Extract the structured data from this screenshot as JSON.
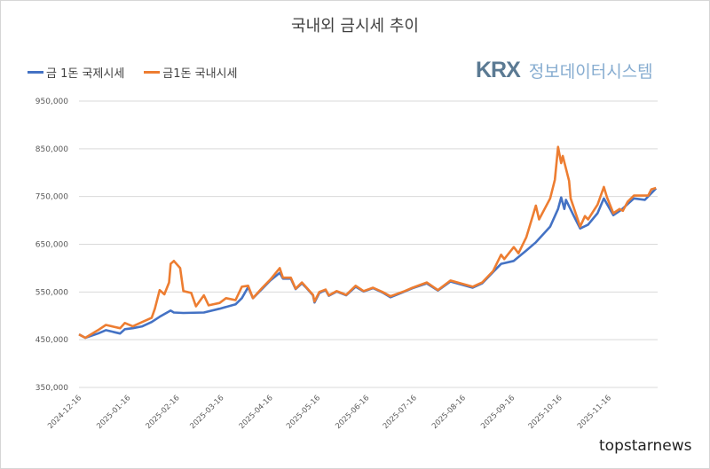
{
  "chart_data": {
    "type": "line",
    "title": "국내외 금시세 추이",
    "xlabel": "",
    "ylabel": "",
    "ylim": [
      350000,
      950000
    ],
    "yticks": [
      "350,000",
      "450,000",
      "550,000",
      "650,000",
      "750,000",
      "850,000",
      "950,000"
    ],
    "ytick_values": [
      350000,
      450000,
      550000,
      650000,
      750000,
      850000,
      950000
    ],
    "xticks": [
      "2024-12-16",
      "2025-01-16",
      "2025-02-16",
      "2025-03-16",
      "2025-04-16",
      "2025-05-16",
      "2025-06-16",
      "2025-07-16",
      "2025-08-16",
      "2025-09-16",
      "2025-10-16",
      "2025-11-16"
    ],
    "xlim": [
      "2024-12-16",
      "2025-12-17"
    ],
    "grid": true,
    "legend_position": "top-left",
    "series": [
      {
        "name": "금 1돈 국제시세",
        "color": "#4472c4",
        "points": [
          [
            "2024-12-16",
            461000
          ],
          [
            "2024-12-20",
            454000
          ],
          [
            "2024-12-28",
            463000
          ],
          [
            "2025-01-02",
            470000
          ],
          [
            "2025-01-11",
            463000
          ],
          [
            "2025-01-14",
            472000
          ],
          [
            "2025-01-19",
            474000
          ],
          [
            "2025-01-25",
            478000
          ],
          [
            "2025-01-31",
            487000
          ],
          [
            "2025-02-05",
            498000
          ],
          [
            "2025-02-12",
            511000
          ],
          [
            "2025-02-14",
            507000
          ],
          [
            "2025-02-20",
            506000
          ],
          [
            "2025-03-05",
            507000
          ],
          [
            "2025-03-15",
            515000
          ],
          [
            "2025-03-25",
            524000
          ],
          [
            "2025-03-29",
            537000
          ],
          [
            "2025-04-02",
            560000
          ],
          [
            "2025-04-05",
            537000
          ],
          [
            "2025-04-11",
            557000
          ],
          [
            "2025-04-16",
            574000
          ],
          [
            "2025-04-22",
            590000
          ],
          [
            "2025-04-24",
            578000
          ],
          [
            "2025-04-29",
            578000
          ],
          [
            "2025-05-02",
            556000
          ],
          [
            "2025-05-06",
            568000
          ],
          [
            "2025-05-09",
            558000
          ],
          [
            "2025-05-13",
            543000
          ],
          [
            "2025-05-14",
            528000
          ],
          [
            "2025-05-17",
            548000
          ],
          [
            "2025-05-21",
            554000
          ],
          [
            "2025-05-23",
            542000
          ],
          [
            "2025-05-28",
            551000
          ],
          [
            "2025-06-03",
            543000
          ],
          [
            "2025-06-09",
            561000
          ],
          [
            "2025-06-14",
            551000
          ],
          [
            "2025-06-20",
            558000
          ],
          [
            "2025-06-26",
            549000
          ],
          [
            "2025-07-01",
            539000
          ],
          [
            "2025-07-10",
            551000
          ],
          [
            "2025-07-15",
            558000
          ],
          [
            "2025-07-24",
            568000
          ],
          [
            "2025-07-31",
            553000
          ],
          [
            "2025-08-08",
            572000
          ],
          [
            "2025-08-22",
            559000
          ],
          [
            "2025-08-28",
            568000
          ],
          [
            "2025-09-04",
            592000
          ],
          [
            "2025-09-09",
            609000
          ],
          [
            "2025-09-17",
            615000
          ],
          [
            "2025-09-25",
            637000
          ],
          [
            "2025-10-01",
            654000
          ],
          [
            "2025-10-10",
            687000
          ],
          [
            "2025-10-15",
            724000
          ],
          [
            "2025-10-17",
            748000
          ],
          [
            "2025-10-19",
            724000
          ],
          [
            "2025-10-20",
            743000
          ],
          [
            "2025-10-25",
            709000
          ],
          [
            "2025-10-29",
            683000
          ],
          [
            "2025-11-03",
            691000
          ],
          [
            "2025-11-09",
            715000
          ],
          [
            "2025-11-13",
            746000
          ],
          [
            "2025-11-19",
            711000
          ],
          [
            "2025-11-24",
            722000
          ],
          [
            "2025-12-02",
            746000
          ],
          [
            "2025-12-09",
            743000
          ],
          [
            "2025-12-16",
            767000
          ]
        ]
      },
      {
        "name": "금1돈 국내시세",
        "color": "#ed7d31",
        "points": [
          [
            "2024-12-16",
            461000
          ],
          [
            "2024-12-20",
            454000
          ],
          [
            "2024-12-28",
            470000
          ],
          [
            "2025-01-02",
            481000
          ],
          [
            "2025-01-11",
            474000
          ],
          [
            "2025-01-14",
            485000
          ],
          [
            "2025-01-19",
            478000
          ],
          [
            "2025-01-25",
            487000
          ],
          [
            "2025-01-31",
            496000
          ],
          [
            "2025-02-02",
            515000
          ],
          [
            "2025-02-05",
            554000
          ],
          [
            "2025-02-08",
            545000
          ],
          [
            "2025-02-11",
            570000
          ],
          [
            "2025-02-12",
            609000
          ],
          [
            "2025-02-14",
            615000
          ],
          [
            "2025-02-18",
            600000
          ],
          [
            "2025-02-20",
            552000
          ],
          [
            "2025-02-25",
            548000
          ],
          [
            "2025-02-28",
            520000
          ],
          [
            "2025-03-05",
            543000
          ],
          [
            "2025-03-08",
            522000
          ],
          [
            "2025-03-15",
            527000
          ],
          [
            "2025-03-19",
            537000
          ],
          [
            "2025-03-25",
            533000
          ],
          [
            "2025-03-29",
            561000
          ],
          [
            "2025-04-02",
            563000
          ],
          [
            "2025-04-05",
            537000
          ],
          [
            "2025-04-11",
            559000
          ],
          [
            "2025-04-16",
            576000
          ],
          [
            "2025-04-22",
            600000
          ],
          [
            "2025-04-24",
            580000
          ],
          [
            "2025-04-29",
            580000
          ],
          [
            "2025-05-02",
            557000
          ],
          [
            "2025-05-06",
            570000
          ],
          [
            "2025-05-09",
            559000
          ],
          [
            "2025-05-13",
            544000
          ],
          [
            "2025-05-14",
            530000
          ],
          [
            "2025-05-17",
            550000
          ],
          [
            "2025-05-21",
            555000
          ],
          [
            "2025-05-23",
            543000
          ],
          [
            "2025-05-28",
            552000
          ],
          [
            "2025-06-03",
            544000
          ],
          [
            "2025-06-09",
            563000
          ],
          [
            "2025-06-14",
            552000
          ],
          [
            "2025-06-20",
            559000
          ],
          [
            "2025-06-26",
            550000
          ],
          [
            "2025-07-01",
            541000
          ],
          [
            "2025-07-10",
            552000
          ],
          [
            "2025-07-15",
            559000
          ],
          [
            "2025-07-24",
            570000
          ],
          [
            "2025-07-31",
            554000
          ],
          [
            "2025-08-08",
            574000
          ],
          [
            "2025-08-22",
            561000
          ],
          [
            "2025-08-28",
            570000
          ],
          [
            "2025-09-04",
            594000
          ],
          [
            "2025-09-09",
            628000
          ],
          [
            "2025-09-11",
            619000
          ],
          [
            "2025-09-17",
            644000
          ],
          [
            "2025-09-20",
            631000
          ],
          [
            "2025-09-25",
            665000
          ],
          [
            "2025-10-01",
            731000
          ],
          [
            "2025-10-03",
            702000
          ],
          [
            "2025-10-10",
            746000
          ],
          [
            "2025-10-13",
            785000
          ],
          [
            "2025-10-15",
            854000
          ],
          [
            "2025-10-17",
            820000
          ],
          [
            "2025-10-18",
            835000
          ],
          [
            "2025-10-22",
            783000
          ],
          [
            "2025-10-23",
            746000
          ],
          [
            "2025-10-29",
            687000
          ],
          [
            "2025-11-01",
            709000
          ],
          [
            "2025-11-03",
            702000
          ],
          [
            "2025-11-09",
            733000
          ],
          [
            "2025-11-13",
            770000
          ],
          [
            "2025-11-15",
            748000
          ],
          [
            "2025-11-19",
            715000
          ],
          [
            "2025-11-23",
            724000
          ],
          [
            "2025-11-25",
            720000
          ],
          [
            "2025-11-28",
            739000
          ],
          [
            "2025-12-02",
            752000
          ],
          [
            "2025-12-07",
            752000
          ],
          [
            "2025-12-11",
            752000
          ],
          [
            "2025-12-13",
            765000
          ],
          [
            "2025-12-16",
            768000
          ]
        ]
      }
    ]
  },
  "logo": {
    "mark": "KRX",
    "text": "정보데이터시스템"
  },
  "watermark": "topstarnews"
}
